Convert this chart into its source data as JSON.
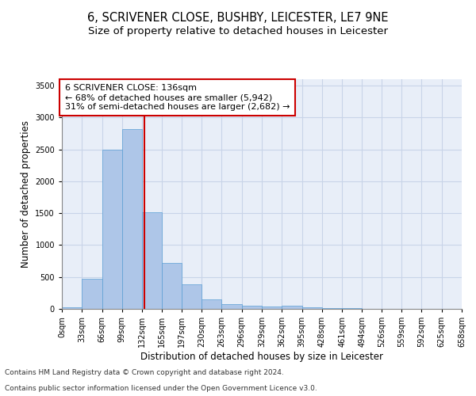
{
  "title_line1": "6, SCRIVENER CLOSE, BUSHBY, LEICESTER, LE7 9NE",
  "title_line2": "Size of property relative to detached houses in Leicester",
  "xlabel": "Distribution of detached houses by size in Leicester",
  "ylabel": "Number of detached properties",
  "bar_edges": [
    0,
    33,
    66,
    99,
    132,
    165,
    197,
    230,
    263,
    296,
    329,
    362,
    395,
    428,
    461,
    494,
    526,
    559,
    592,
    625,
    658
  ],
  "bar_heights": [
    20,
    470,
    2500,
    2820,
    1510,
    720,
    390,
    150,
    70,
    55,
    40,
    55,
    25,
    15,
    10,
    5,
    5,
    5,
    3,
    2
  ],
  "bar_color": "#aec6e8",
  "bar_edgecolor": "#5a9fd4",
  "grid_color": "#c8d4e8",
  "bg_color": "#e8eef8",
  "vline_x": 136,
  "vline_color": "#cc0000",
  "annotation_text": "6 SCRIVENER CLOSE: 136sqm\n← 68% of detached houses are smaller (5,942)\n31% of semi-detached houses are larger (2,682) →",
  "annotation_box_color": "#ffffff",
  "annotation_box_edge": "#cc0000",
  "ylim": [
    0,
    3600
  ],
  "yticks": [
    0,
    500,
    1000,
    1500,
    2000,
    2500,
    3000,
    3500
  ],
  "xtick_labels": [
    "0sqm",
    "33sqm",
    "66sqm",
    "99sqm",
    "132sqm",
    "165sqm",
    "197sqm",
    "230sqm",
    "263sqm",
    "296sqm",
    "329sqm",
    "362sqm",
    "395sqm",
    "428sqm",
    "461sqm",
    "494sqm",
    "526sqm",
    "559sqm",
    "592sqm",
    "625sqm",
    "658sqm"
  ],
  "footer_line1": "Contains HM Land Registry data © Crown copyright and database right 2024.",
  "footer_line2": "Contains public sector information licensed under the Open Government Licence v3.0.",
  "title_fontsize": 10.5,
  "subtitle_fontsize": 9.5,
  "axis_label_fontsize": 8.5,
  "tick_fontsize": 7,
  "annotation_fontsize": 8,
  "footer_fontsize": 6.5
}
